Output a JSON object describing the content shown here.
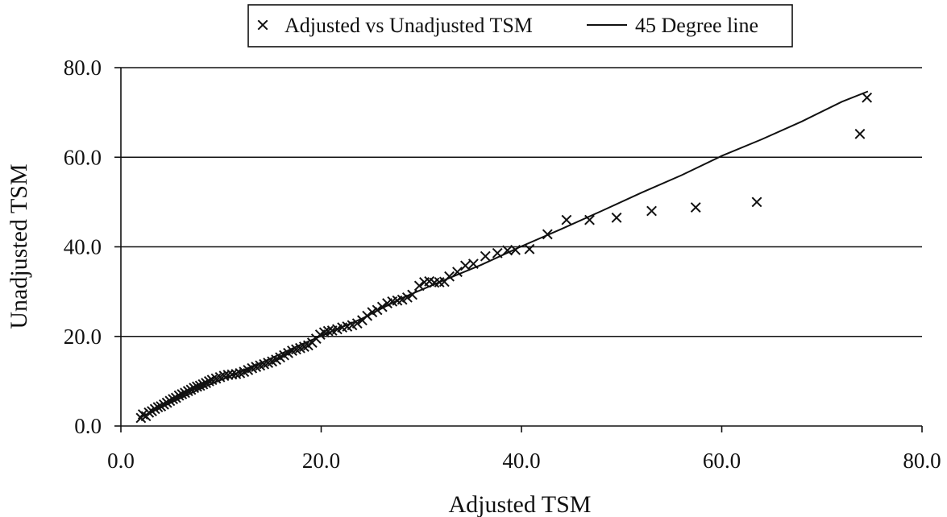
{
  "chart_data": {
    "type": "scatter",
    "xlabel": "Adjusted TSM",
    "ylabel": "Unadjusted TSM",
    "xlim": [
      0,
      80
    ],
    "ylim": [
      0,
      80
    ],
    "x_ticks": [
      "0.0",
      "20.0",
      "40.0",
      "60.0",
      "80.0"
    ],
    "y_ticks": [
      "0.0",
      "20.0",
      "40.0",
      "60.0",
      "80.0"
    ],
    "grid": "horizontal",
    "legend_position": "top-center",
    "series": [
      {
        "name": "Adjusted vs Unadjusted TSM",
        "kind": "scatter",
        "marker": "x",
        "points": [
          [
            2.0,
            1.8
          ],
          [
            2.2,
            2.6
          ],
          [
            2.5,
            2.2
          ],
          [
            2.8,
            3.0
          ],
          [
            3.1,
            3.3
          ],
          [
            3.4,
            3.8
          ],
          [
            3.7,
            4.2
          ],
          [
            4.0,
            4.4
          ],
          [
            4.3,
            4.8
          ],
          [
            4.6,
            5.2
          ],
          [
            4.9,
            5.6
          ],
          [
            5.2,
            6.0
          ],
          [
            5.5,
            6.3
          ],
          [
            5.8,
            6.8
          ],
          [
            6.1,
            7.1
          ],
          [
            6.4,
            7.4
          ],
          [
            6.7,
            7.8
          ],
          [
            7.0,
            8.1
          ],
          [
            7.3,
            8.5
          ],
          [
            7.6,
            8.8
          ],
          [
            7.9,
            9.0
          ],
          [
            8.2,
            9.3
          ],
          [
            8.5,
            9.6
          ],
          [
            8.8,
            10.0
          ],
          [
            9.1,
            10.3
          ],
          [
            9.5,
            10.6
          ],
          [
            9.9,
            10.9
          ],
          [
            10.3,
            11.2
          ],
          [
            10.7,
            11.4
          ],
          [
            11.1,
            11.5
          ],
          [
            11.5,
            11.6
          ],
          [
            11.9,
            11.8
          ],
          [
            12.3,
            12.1
          ],
          [
            12.7,
            12.5
          ],
          [
            13.1,
            12.9
          ],
          [
            13.5,
            13.2
          ],
          [
            13.9,
            13.5
          ],
          [
            14.3,
            13.8
          ],
          [
            14.7,
            14.1
          ],
          [
            15.1,
            14.4
          ],
          [
            15.5,
            14.8
          ],
          [
            15.9,
            15.3
          ],
          [
            16.3,
            15.8
          ],
          [
            16.7,
            16.3
          ],
          [
            17.1,
            16.8
          ],
          [
            17.5,
            17.1
          ],
          [
            17.9,
            17.4
          ],
          [
            18.3,
            17.7
          ],
          [
            18.7,
            18.0
          ],
          [
            19.1,
            18.6
          ],
          [
            19.5,
            19.5
          ],
          [
            19.9,
            20.4
          ],
          [
            20.3,
            20.9
          ],
          [
            20.7,
            21.2
          ],
          [
            21.1,
            21.3
          ],
          [
            21.6,
            21.6
          ],
          [
            22.1,
            22.0
          ],
          [
            22.6,
            22.2
          ],
          [
            23.1,
            22.5
          ],
          [
            23.6,
            22.9
          ],
          [
            24.1,
            23.6
          ],
          [
            24.6,
            24.6
          ],
          [
            25.1,
            25.4
          ],
          [
            25.6,
            25.9
          ],
          [
            26.1,
            26.6
          ],
          [
            26.6,
            27.4
          ],
          [
            27.1,
            27.8
          ],
          [
            27.6,
            28.0
          ],
          [
            28.1,
            28.2
          ],
          [
            28.6,
            28.7
          ],
          [
            29.1,
            29.3
          ],
          [
            29.8,
            31.3
          ],
          [
            30.3,
            32.1
          ],
          [
            30.8,
            32.3
          ],
          [
            31.3,
            32.0
          ],
          [
            31.8,
            32.1
          ],
          [
            32.3,
            32.2
          ],
          [
            32.8,
            33.4
          ],
          [
            33.6,
            34.4
          ],
          [
            34.4,
            35.8
          ],
          [
            35.2,
            36.2
          ],
          [
            36.4,
            37.9
          ],
          [
            37.6,
            38.6
          ],
          [
            38.6,
            39.2
          ],
          [
            39.4,
            39.3
          ],
          [
            40.8,
            39.5
          ],
          [
            42.6,
            42.8
          ],
          [
            44.5,
            46.0
          ],
          [
            46.8,
            46.0
          ],
          [
            49.5,
            46.5
          ],
          [
            53.0,
            48.0
          ],
          [
            57.4,
            48.8
          ],
          [
            63.5,
            50.0
          ],
          [
            73.8,
            65.2
          ],
          [
            74.5,
            73.3
          ]
        ]
      },
      {
        "name": "45 Degree line",
        "kind": "line",
        "points": [
          [
            2.0,
            2.0
          ],
          [
            8.0,
            8.4
          ],
          [
            14.0,
            14.1
          ],
          [
            18.0,
            18.2
          ],
          [
            20.0,
            20.1
          ],
          [
            24.0,
            23.9
          ],
          [
            28.0,
            28.5
          ],
          [
            32.0,
            32.3
          ],
          [
            36.0,
            36.0
          ],
          [
            40.0,
            40.1
          ],
          [
            44.0,
            44.0
          ],
          [
            48.0,
            48.0
          ],
          [
            52.0,
            52.1
          ],
          [
            56.0,
            56.0
          ],
          [
            60.0,
            60.3
          ],
          [
            64.0,
            64.0
          ],
          [
            68.0,
            68.0
          ],
          [
            72.0,
            72.4
          ],
          [
            74.6,
            74.7
          ]
        ]
      }
    ]
  }
}
